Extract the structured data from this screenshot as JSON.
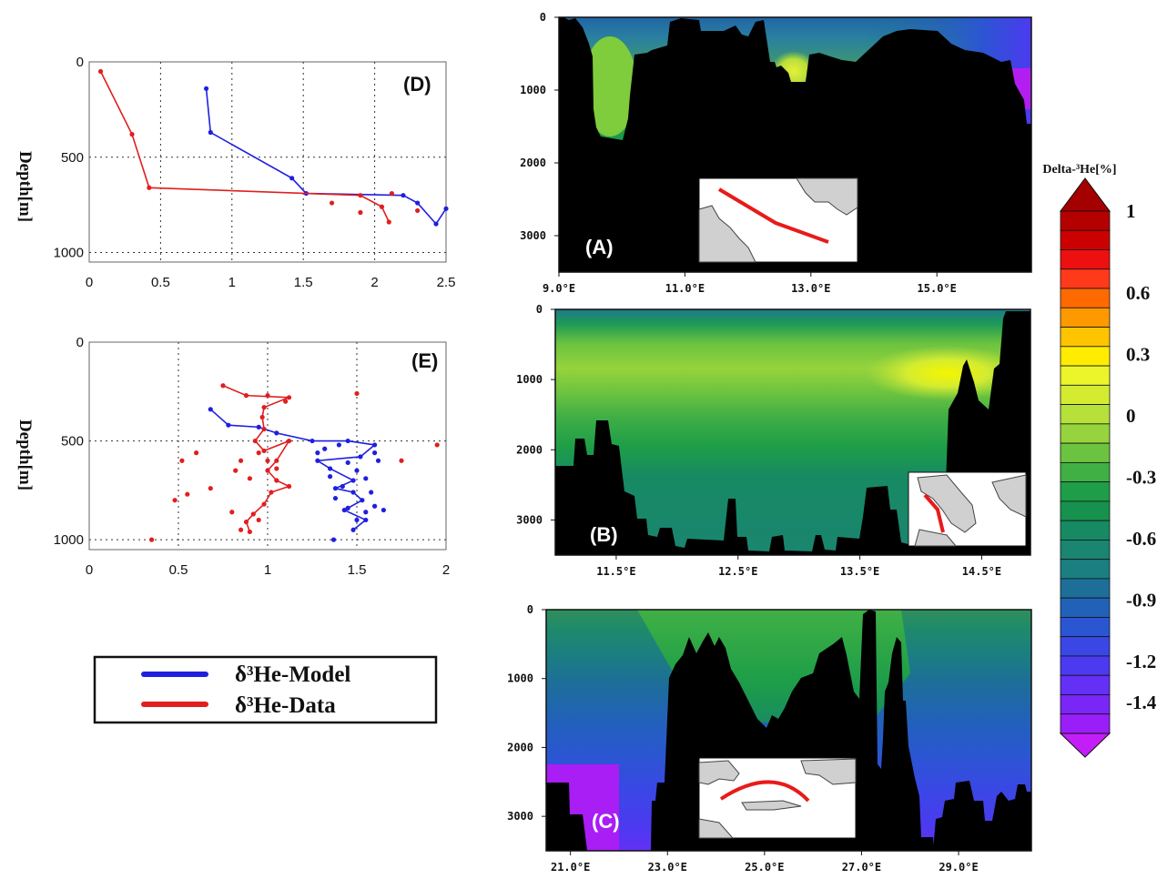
{
  "chart_data": [
    {
      "id": "D",
      "type": "line",
      "panel_label": "(D)",
      "ylabel": "Depth[m]",
      "xlim": [
        0,
        2.5
      ],
      "ylim": [
        0,
        1050
      ],
      "y_inverted": true,
      "x_ticks": [
        "0",
        "0.5",
        "1",
        "1.5",
        "2",
        "2.5"
      ],
      "y_ticks": [
        "0",
        "500",
        "1000"
      ],
      "x_tick_values": [
        0,
        0.5,
        1,
        1.5,
        2,
        2.5
      ],
      "y_tick_values": [
        0,
        500,
        1000
      ],
      "grid": true,
      "series": [
        {
          "name": "δ3He-Model",
          "color": "#1f1fe0",
          "points": [
            [
              0.82,
              140
            ],
            [
              0.85,
              370
            ],
            [
              1.42,
              610
            ],
            [
              1.52,
              690
            ],
            [
              2.2,
              700
            ],
            [
              2.3,
              740
            ],
            [
              2.43,
              850
            ],
            [
              2.5,
              770
            ]
          ]
        },
        {
          "name": "δ3He-Data",
          "color": "#e01f1f",
          "points": [
            [
              0.08,
              50
            ],
            [
              0.3,
              380
            ],
            [
              0.42,
              660
            ],
            [
              1.9,
              700
            ],
            [
              2.05,
              760
            ],
            [
              2.1,
              840
            ]
          ]
        }
      ],
      "scatter": [
        {
          "color": "#e01f1f",
          "points": [
            [
              1.7,
              740
            ],
            [
              1.9,
              790
            ],
            [
              2.12,
              690
            ],
            [
              2.3,
              780
            ]
          ]
        }
      ]
    },
    {
      "id": "E",
      "type": "line",
      "panel_label": "(E)",
      "ylabel": "Depth[m]",
      "xlim": [
        0,
        2
      ],
      "ylim": [
        0,
        1050
      ],
      "y_inverted": true,
      "x_ticks": [
        "0",
        "0.5",
        "1",
        "1.5",
        "2"
      ],
      "y_ticks": [
        "0",
        "500",
        "1000"
      ],
      "x_tick_values": [
        0,
        0.5,
        1,
        1.5,
        2
      ],
      "y_tick_values": [
        0,
        500,
        1000
      ],
      "grid": true,
      "series": [
        {
          "name": "δ3He-Model",
          "color": "#1f1fe0",
          "points": [
            [
              0.68,
              340
            ],
            [
              0.78,
              420
            ],
            [
              0.95,
              430
            ],
            [
              1.05,
              460
            ],
            [
              1.25,
              500
            ],
            [
              1.45,
              500
            ],
            [
              1.6,
              520
            ],
            [
              1.52,
              580
            ],
            [
              1.28,
              600
            ],
            [
              1.35,
              640
            ],
            [
              1.48,
              700
            ],
            [
              1.38,
              740
            ],
            [
              1.48,
              760
            ],
            [
              1.53,
              800
            ],
            [
              1.43,
              850
            ],
            [
              1.55,
              900
            ],
            [
              1.48,
              950
            ]
          ]
        },
        {
          "name": "δ3He-Data",
          "color": "#e01f1f",
          "points": [
            [
              0.75,
              220
            ],
            [
              0.88,
              270
            ],
            [
              1.12,
              280
            ],
            [
              0.98,
              330
            ],
            [
              0.97,
              380
            ],
            [
              0.98,
              440
            ],
            [
              0.93,
              500
            ],
            [
              0.98,
              550
            ],
            [
              1.12,
              500
            ],
            [
              1.05,
              600
            ],
            [
              1.0,
              650
            ],
            [
              1.05,
              700
            ],
            [
              1.12,
              730
            ],
            [
              1.02,
              760
            ],
            [
              0.98,
              820
            ],
            [
              0.92,
              870
            ],
            [
              0.88,
              910
            ],
            [
              0.9,
              960
            ]
          ]
        }
      ],
      "scatter": [
        {
          "color": "#e01f1f",
          "points": [
            [
              0.52,
              600
            ],
            [
              0.55,
              770
            ],
            [
              0.6,
              560
            ],
            [
              0.48,
              800
            ],
            [
              0.68,
              740
            ],
            [
              0.8,
              860
            ],
            [
              0.82,
              650
            ],
            [
              0.85,
              600
            ],
            [
              0.9,
              690
            ],
            [
              0.95,
              560
            ],
            [
              1.0,
              600
            ],
            [
              1.05,
              640
            ],
            [
              0.95,
              900
            ],
            [
              0.85,
              950
            ],
            [
              1.5,
              260
            ],
            [
              1.75,
              600
            ],
            [
              1.95,
              520
            ],
            [
              0.35,
              1000
            ],
            [
              1.1,
              300
            ],
            [
              1.0,
              270
            ]
          ]
        },
        {
          "color": "#1f1fe0",
          "points": [
            [
              1.28,
              560
            ],
            [
              1.32,
              540
            ],
            [
              1.4,
              520
            ],
            [
              1.45,
              610
            ],
            [
              1.5,
              650
            ],
            [
              1.55,
              690
            ],
            [
              1.6,
              560
            ],
            [
              1.62,
              600
            ],
            [
              1.42,
              730
            ],
            [
              1.38,
              790
            ],
            [
              1.45,
              840
            ],
            [
              1.55,
              860
            ],
            [
              1.6,
              830
            ],
            [
              1.65,
              850
            ],
            [
              1.35,
              680
            ],
            [
              1.37,
              1000
            ],
            [
              1.5,
              900
            ],
            [
              1.58,
              760
            ]
          ]
        }
      ]
    },
    {
      "id": "A",
      "type": "heatmap",
      "panel_label": "(A)",
      "x_ticks": [
        "9.0°E",
        "11.0°E",
        "13.0°E",
        "15.0°E"
      ],
      "x_tick_values": [
        9,
        11,
        13,
        15
      ],
      "y_ticks": [
        "0",
        "1000",
        "2000",
        "3000"
      ],
      "y_tick_values": [
        0,
        1000,
        2000,
        3000
      ],
      "xlim": [
        9,
        16.5
      ],
      "ylim": [
        0,
        3500
      ]
    },
    {
      "id": "B",
      "type": "heatmap",
      "panel_label": "(B)",
      "x_ticks": [
        "11.5°E",
        "12.5°E",
        "13.5°E",
        "14.5°E"
      ],
      "x_tick_values": [
        11.5,
        12.5,
        13.5,
        14.5
      ],
      "y_ticks": [
        "0",
        "1000",
        "2000",
        "3000"
      ],
      "y_tick_values": [
        0,
        1000,
        2000,
        3000
      ],
      "xlim": [
        11.0,
        14.9
      ],
      "ylim": [
        0,
        3500
      ]
    },
    {
      "id": "C",
      "type": "heatmap",
      "panel_label": "(C)",
      "x_ticks": [
        "21.0°E",
        "23.0°E",
        "25.0°E",
        "27.0°E",
        "29.0°E"
      ],
      "x_tick_values": [
        21,
        23,
        25,
        27,
        29
      ],
      "y_ticks": [
        "0",
        "1000",
        "2000",
        "3000"
      ],
      "y_tick_values": [
        0,
        1000,
        2000,
        3000
      ],
      "xlim": [
        20.5,
        30.5
      ],
      "ylim": [
        0,
        3500
      ]
    }
  ],
  "colorbar": {
    "title": "Delta-³He[%]",
    "labels": [
      "1",
      "0.6",
      "0.3",
      "0",
      "-0.3",
      "-0.6",
      "-0.9",
      "-1.2",
      "-1.4"
    ],
    "label_values": [
      1,
      0.6,
      0.3,
      0,
      -0.3,
      -0.6,
      -0.9,
      -1.2,
      -1.4
    ],
    "colors": [
      "#b50000",
      "#cc0000",
      "#ee1010",
      "#ff3a1a",
      "#ff6a00",
      "#ff9900",
      "#ffc400",
      "#ffec00",
      "#ecf52a",
      "#d4ec30",
      "#b6e03a",
      "#96d33c",
      "#6cc33f",
      "#40b045",
      "#1e9e48",
      "#17924e",
      "#178a63",
      "#1a8570",
      "#1b7f80",
      "#1d6f97",
      "#2162b8",
      "#2b56d2",
      "#3a47e5",
      "#4c3af0",
      "#6430f5",
      "#7a26f7",
      "#9a1ef8"
    ],
    "top_cap": "#a40000",
    "bottom_cap": "#c41ef8"
  },
  "legend": [
    {
      "label": "δ³He-Model",
      "color": "#1f1fe0"
    },
    {
      "label": "δ³He-Data",
      "color": "#e01f1f"
    }
  ]
}
